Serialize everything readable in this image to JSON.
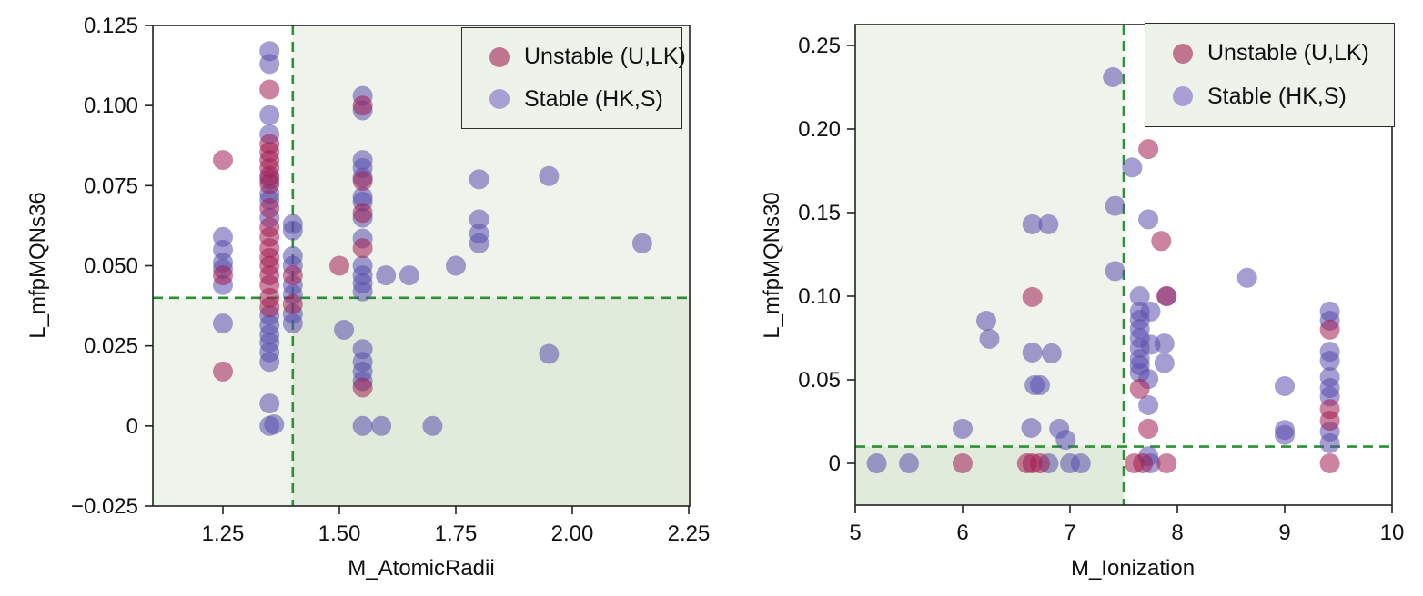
{
  "page": {
    "background": "#ffffff"
  },
  "colors": {
    "unstable_fill": "#a31d52",
    "unstable_opacity": 0.55,
    "stable_fill": "#5a4fad",
    "stable_opacity": 0.55,
    "unstable_legend_swatch": "#c0758f",
    "stable_legend_swatch": "#a89fd4",
    "shade_fill": "rgba(158,196,148,0.18)",
    "threshold_line": "#2c9132",
    "frame": "#222222",
    "tick_text": "#111111"
  },
  "legend": {
    "unstable_label": "Unstable (U,LK)",
    "stable_label": "Stable (HK,S)"
  },
  "chart_data": [
    {
      "type": "scatter",
      "xlabel": "M_AtomicRadii",
      "ylabel": "L_mfpMQNs36",
      "xlim": [
        1.0996,
        2.252
      ],
      "ylim": [
        -0.025,
        0.125
      ],
      "xticks": [
        1.25,
        1.5,
        1.75,
        2.0,
        2.25
      ],
      "xtick_labels": [
        "1.25",
        "1.50",
        "1.75",
        "2.00",
        "2.25"
      ],
      "yticks": [
        0.125,
        0.1,
        0.075,
        0.05,
        0.025,
        0,
        -0.025
      ],
      "ytick_labels": [
        "0.125",
        "0.100",
        "0.075",
        "0.050",
        "0.025",
        "0",
        "−0.025"
      ],
      "threshold_x": 1.4,
      "threshold_y": 0.04,
      "shade": {
        "x_side": "right",
        "y_strip": "full"
      },
      "grid": false,
      "legend_position": "upper right",
      "series": [
        {
          "name": "Stable (HK,S)",
          "color_key": "stable",
          "points": [
            [
              1.25,
              0.059
            ],
            [
              1.25,
              0.055
            ],
            [
              1.25,
              0.051
            ],
            [
              1.25,
              0.049
            ],
            [
              1.25,
              0.044
            ],
            [
              1.25,
              0.032
            ],
            [
              1.35,
              0.117
            ],
            [
              1.35,
              0.113
            ],
            [
              1.35,
              0.097
            ],
            [
              1.35,
              0.091
            ],
            [
              1.35,
              0.077
            ],
            [
              1.35,
              0.0725
            ],
            [
              1.35,
              0.0705
            ],
            [
              1.35,
              0.065
            ],
            [
              1.35,
              0.0345
            ],
            [
              1.35,
              0.0315
            ],
            [
              1.35,
              0.0285
            ],
            [
              1.35,
              0.026
            ],
            [
              1.35,
              0.023
            ],
            [
              1.35,
              0.02
            ],
            [
              1.35,
              0.007
            ],
            [
              1.35,
              0.0
            ],
            [
              1.36,
              0.0005
            ],
            [
              1.4,
              0.063
            ],
            [
              1.4,
              0.061
            ],
            [
              1.4,
              0.053
            ],
            [
              1.4,
              0.05
            ],
            [
              1.4,
              0.044
            ],
            [
              1.4,
              0.041
            ],
            [
              1.4,
              0.035
            ],
            [
              1.4,
              0.032
            ],
            [
              1.51,
              0.03
            ],
            [
              1.55,
              0.103
            ],
            [
              1.55,
              0.0985
            ],
            [
              1.55,
              0.083
            ],
            [
              1.55,
              0.0805
            ],
            [
              1.55,
              0.0775
            ],
            [
              1.55,
              0.0715
            ],
            [
              1.55,
              0.07
            ],
            [
              1.55,
              0.065
            ],
            [
              1.55,
              0.0585
            ],
            [
              1.55,
              0.05
            ],
            [
              1.55,
              0.047
            ],
            [
              1.55,
              0.0445
            ],
            [
              1.55,
              0.042
            ],
            [
              1.55,
              0.024
            ],
            [
              1.55,
              0.02
            ],
            [
              1.55,
              0.017
            ],
            [
              1.55,
              0.014
            ],
            [
              1.55,
              0.0
            ],
            [
              1.6,
              0.047
            ],
            [
              1.59,
              0.0
            ],
            [
              1.65,
              0.047
            ],
            [
              1.7,
              0.0
            ],
            [
              1.75,
              0.05
            ],
            [
              1.8,
              0.077
            ],
            [
              1.8,
              0.0645
            ],
            [
              1.8,
              0.06
            ],
            [
              1.8,
              0.057
            ],
            [
              1.95,
              0.078
            ],
            [
              1.95,
              0.0225
            ],
            [
              2.15,
              0.057
            ]
          ]
        },
        {
          "name": "Unstable (U,LK)",
          "color_key": "unstable",
          "points": [
            [
              1.25,
              0.083
            ],
            [
              1.25,
              0.047
            ],
            [
              1.25,
              0.017
            ],
            [
              1.35,
              0.105
            ],
            [
              1.35,
              0.088
            ],
            [
              1.35,
              0.0855
            ],
            [
              1.35,
              0.083
            ],
            [
              1.35,
              0.0805
            ],
            [
              1.35,
              0.078
            ],
            [
              1.35,
              0.0755
            ],
            [
              1.35,
              0.068
            ],
            [
              1.35,
              0.062
            ],
            [
              1.35,
              0.059
            ],
            [
              1.35,
              0.0555
            ],
            [
              1.35,
              0.0525
            ],
            [
              1.35,
              0.05
            ],
            [
              1.35,
              0.047
            ],
            [
              1.35,
              0.044
            ],
            [
              1.35,
              0.04
            ],
            [
              1.35,
              0.037
            ],
            [
              1.4,
              0.047
            ],
            [
              1.4,
              0.038
            ],
            [
              1.5,
              0.05
            ],
            [
              1.55,
              0.1
            ],
            [
              1.55,
              0.0765
            ],
            [
              1.55,
              0.0665
            ],
            [
              1.55,
              0.0555
            ],
            [
              1.55,
              0.012
            ]
          ]
        }
      ]
    },
    {
      "type": "scatter",
      "xlabel": "M_Ionization",
      "ylabel": "L_mfpMQNs30",
      "xlim": [
        5,
        10
      ],
      "ylim": [
        -0.025,
        0.2625
      ],
      "xticks": [
        5,
        6,
        7,
        8,
        9,
        10
      ],
      "xtick_labels": [
        "5",
        "6",
        "7",
        "8",
        "9",
        "10"
      ],
      "yticks": [
        0.25,
        0.2,
        0.15,
        0.1,
        0.05,
        0
      ],
      "ytick_labels": [
        "0.25",
        "0.20",
        "0.15",
        "0.10",
        "0.05",
        "0"
      ],
      "threshold_x": 7.5,
      "threshold_y": 0.01,
      "shade": {
        "x_side": "left",
        "y_strip": "within_x"
      },
      "grid": false,
      "legend_position": "upper right",
      "series": [
        {
          "name": "Stable (HK,S)",
          "color_key": "stable",
          "points": [
            [
              7.4,
              0.231
            ],
            [
              7.58,
              0.177
            ],
            [
              7.42,
              0.154
            ],
            [
              7.73,
              0.146
            ],
            [
              6.65,
              0.143
            ],
            [
              6.8,
              0.143
            ],
            [
              7.42,
              0.115
            ],
            [
              8.65,
              0.111
            ],
            [
              7.65,
              0.1
            ],
            [
              7.9,
              0.1
            ],
            [
              7.65,
              0.0908
            ],
            [
              7.75,
              0.0908
            ],
            [
              7.65,
              0.0859
            ],
            [
              7.65,
              0.0804
            ],
            [
              7.65,
              0.075
            ],
            [
              7.88,
              0.0717
            ],
            [
              7.75,
              0.071
            ],
            [
              7.65,
              0.069
            ],
            [
              7.65,
              0.0625
            ],
            [
              7.88,
              0.06
            ],
            [
              7.65,
              0.0587
            ],
            [
              7.65,
              0.0543
            ],
            [
              7.73,
              0.0505
            ],
            [
              7.73,
              0.0348
            ],
            [
              7.73,
              0.0043
            ],
            [
              6.22,
              0.0853
            ],
            [
              6.25,
              0.0745
            ],
            [
              6.65,
              0.0663
            ],
            [
              6.83,
              0.0658
            ],
            [
              6.67,
              0.0468
            ],
            [
              6.72,
              0.0468
            ],
            [
              6.0,
              0.0207
            ],
            [
              6.64,
              0.0212
            ],
            [
              6.9,
              0.0207
            ],
            [
              6.96,
              0.0141
            ],
            [
              9.0,
              0.0462
            ],
            [
              9.0,
              0.02
            ],
            [
              9.0,
              0.017
            ],
            [
              9.42,
              0.0908
            ],
            [
              9.42,
              0.0853
            ],
            [
              9.42,
              0.0668
            ],
            [
              9.42,
              0.0614
            ],
            [
              9.42,
              0.0516
            ],
            [
              9.42,
              0.0451
            ],
            [
              9.42,
              0.04
            ],
            [
              9.42,
              0.019
            ],
            [
              9.42,
              0.012
            ],
            [
              5.2,
              0.0
            ],
            [
              5.5,
              0.0
            ],
            [
              6.8,
              0.0
            ],
            [
              7.0,
              0.0
            ],
            [
              7.1,
              0.0
            ],
            [
              7.75,
              0.0
            ]
          ]
        },
        {
          "name": "Unstable (U,LK)",
          "color_key": "unstable",
          "points": [
            [
              7.73,
              0.188
            ],
            [
              7.85,
              0.133
            ],
            [
              6.65,
              0.0995
            ],
            [
              7.9,
              0.1
            ],
            [
              7.65,
              0.0446
            ],
            [
              7.73,
              0.0207
            ],
            [
              9.42,
              0.08
            ],
            [
              9.42,
              0.0325
            ],
            [
              9.42,
              0.0255
            ],
            [
              6.0,
              0.0
            ],
            [
              6.6,
              0.0
            ],
            [
              6.65,
              0.0
            ],
            [
              6.72,
              0.0
            ],
            [
              7.6,
              0.0
            ],
            [
              7.68,
              0.0
            ],
            [
              7.9,
              0.0
            ],
            [
              9.42,
              0.0
            ]
          ]
        }
      ]
    }
  ]
}
